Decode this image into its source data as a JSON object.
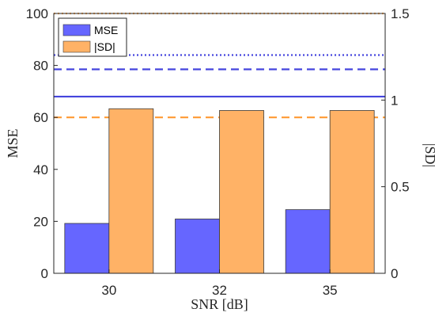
{
  "chart_data": {
    "type": "bar",
    "categories": [
      "30",
      "32",
      "35"
    ],
    "xlabel": "SNR [dB]",
    "ylabel_left": "MSE",
    "ylabel_right": "|SD|",
    "ylim_left": [
      0,
      100
    ],
    "ylim_right": [
      0,
      1.5
    ],
    "yticks_left": [
      "0",
      "20",
      "40",
      "60",
      "80",
      "100"
    ],
    "yticks_right": [
      "0",
      "0.5",
      "1",
      "1.5"
    ],
    "series": [
      {
        "name": "MSE",
        "axis": "left",
        "color": "#6666ff",
        "values": [
          19.2,
          20.9,
          24.5
        ]
      },
      {
        "name": "|SD|",
        "axis": "right",
        "color": "#ffb266",
        "values": [
          0.95,
          0.94,
          0.94
        ]
      }
    ],
    "reference_lines": [
      {
        "axis": "right",
        "color": "#ffb266",
        "style": "dotted",
        "value": 1.5
      },
      {
        "axis": "left",
        "color": "#4444dd",
        "style": "dotted",
        "value": 84
      },
      {
        "axis": "left",
        "color": "#4444dd",
        "style": "dashed",
        "value": 78.5
      },
      {
        "axis": "left",
        "color": "#4444dd",
        "style": "solid",
        "value": 68
      },
      {
        "axis": "left",
        "color": "#ff9933",
        "style": "dashed",
        "value": 60
      }
    ],
    "legend": "top-left",
    "grid": false
  }
}
